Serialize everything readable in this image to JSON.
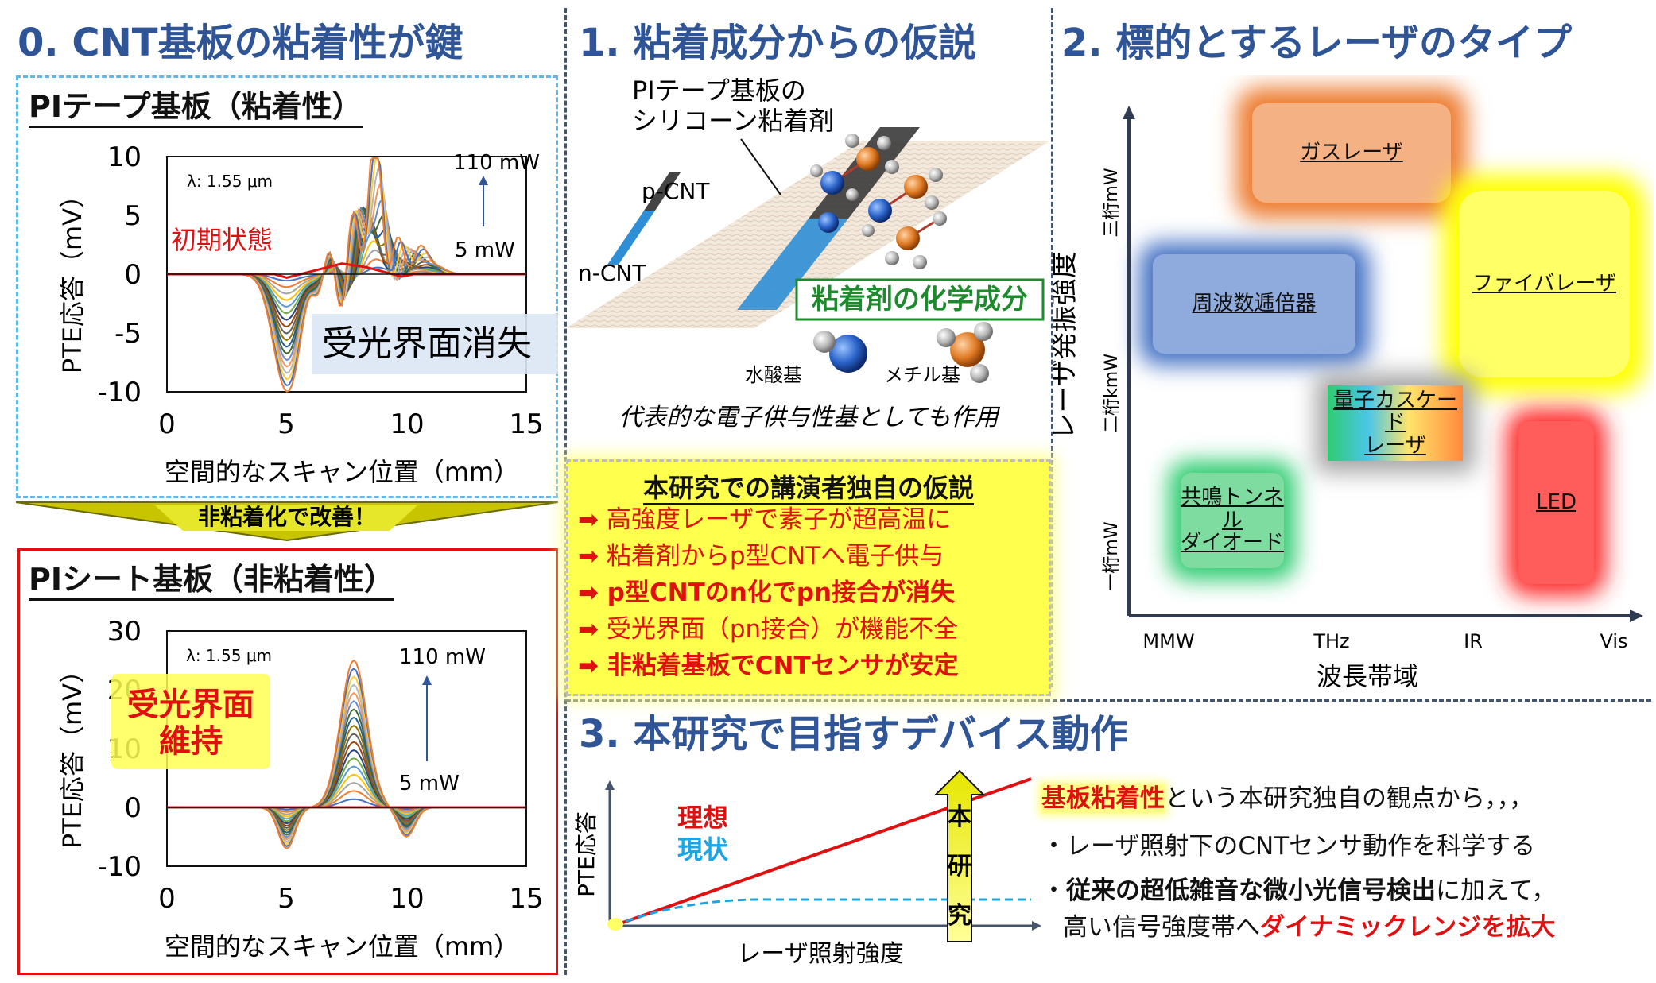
{
  "sec0": {
    "title": "0. CNT基板の粘着性が鍵",
    "top_panel": {
      "heading": "PIテープ基板（粘着性）",
      "y_label": "PTE応答（mV）",
      "x_label": "空間的なスキャン位置（mm）",
      "y_ticks": [
        "10",
        "5",
        "0",
        "-5",
        "-10"
      ],
      "x_ticks": [
        "0",
        "5",
        "10",
        "15"
      ],
      "lambda": "λ: 1.55 μm",
      "power_high": "110 mW",
      "power_low": "5 mW",
      "initial_label": "初期状態",
      "loss_label": "受光界面消失"
    },
    "arrow_label": "非粘着化で改善！",
    "bottom_panel": {
      "heading": "PIシート基板（非粘着性）",
      "y_label": "PTE応答（mV）",
      "x_label": "空間的なスキャン位置（mm）",
      "y_ticks": [
        "30",
        "20",
        "10",
        "0",
        "-10"
      ],
      "x_ticks": [
        "0",
        "5",
        "10",
        "15"
      ],
      "lambda": "λ: 1.55 μm",
      "power_high": "110 mW",
      "power_low": "5 mW",
      "keep_label_1": "受光界面",
      "keep_label_2": "維持"
    }
  },
  "sec1": {
    "title": "1. 粘着成分からの仮説",
    "substrate_label_1": "PIテープ基板の",
    "substrate_label_2": "シリコーン粘着剤",
    "p_cnt": "p-CNT",
    "n_cnt": "n-CNT",
    "chem_label": "粘着剤の化学成分",
    "hydroxyl": "水酸基",
    "methyl": "メチル基",
    "donor_note": "代表的な電子供与性基としても作用",
    "hypothesis": {
      "title": "本研究での講演者独自の仮説",
      "items": [
        "➡ 高強度レーザで素子が超高温に",
        "➡ 粘着剤からp型CNTへ電子供与",
        "➡ p型CNTのn化でpn接合が消失",
        "➡ 受光界面（pn接合）が機能不全",
        "➡ 非粘着基板でCNTセンサが安定"
      ]
    }
  },
  "sec2": {
    "title": "2. 標的とするレーザのタイプ",
    "y_label": "レーザ発振強度",
    "x_label": "波長帯域",
    "y_ticks": [
      "三桁mW",
      "二桁kmW",
      "一桁mW"
    ],
    "x_ticks": [
      "MMW",
      "THz",
      "IR",
      "Vis"
    ],
    "lasers": {
      "gas": "ガスレーザ",
      "fiber": "ファイバレーザ",
      "multiplier": "周波数逓倍器",
      "qcl_1": "量子カスケード",
      "qcl_2": "レーザ",
      "rtd_1": "共鳴トンネル",
      "rtd_2": "ダイオード",
      "led": "LED"
    },
    "colors": {
      "gas": "#ed7d31",
      "fiber": "#ffff00",
      "multiplier": "#4472c4",
      "rtd": "#2ecc71",
      "led": "#ff2a2a",
      "qcl_frame": "#a6a6a6"
    }
  },
  "sec3": {
    "title": "3. 本研究で目指すデバイス動作",
    "y_label": "PTE応答",
    "x_label": "レーザ照射強度",
    "ideal": "理想",
    "current": "現状",
    "arrow_chars": [
      "本",
      "研",
      "究"
    ],
    "line1_highlight": "基板粘着性",
    "line1_rest": "という本研究独自の観点から，，，",
    "line2": "・レーザ照射下のCNTセンサ動作を科学する",
    "line3_bullet": "・",
    "line3_bold": "従来の超低雑音な微小光信号検出",
    "line3_rest": "に加えて，",
    "line4_prefix": "高い信号強度帯へ",
    "line4_red": "ダイナミックレンジを拡大"
  }
}
